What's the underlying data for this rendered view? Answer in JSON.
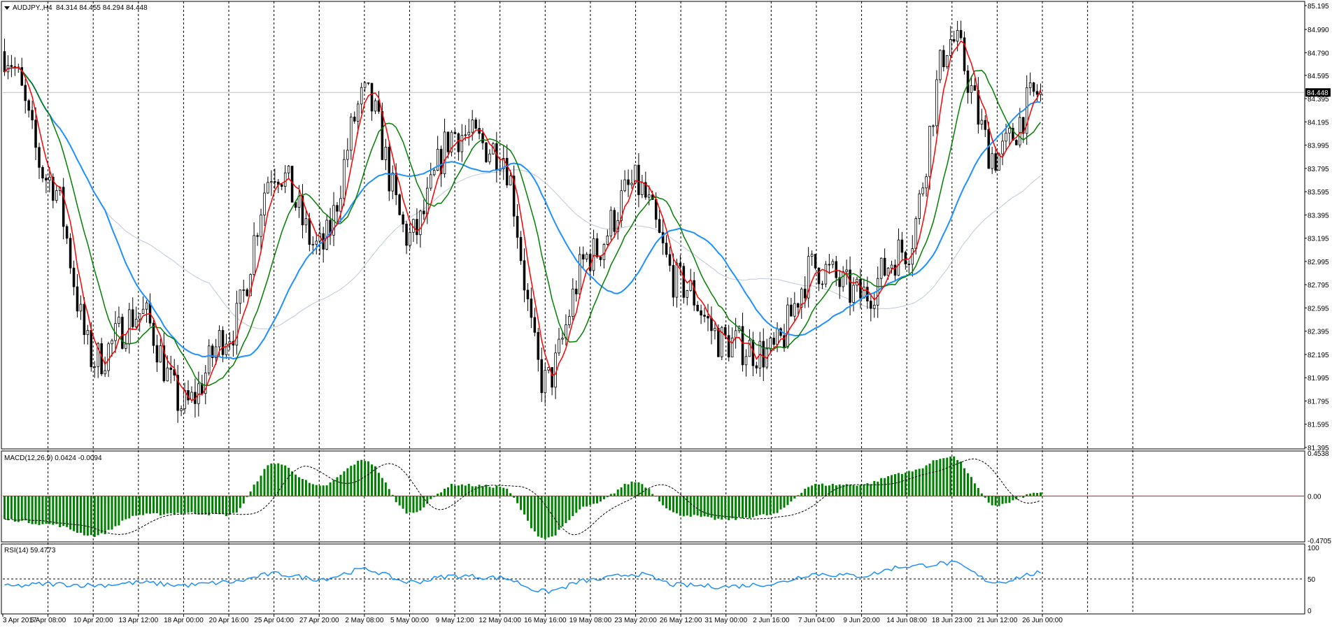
{
  "symbol_label": "AUDJPY.,H4",
  "ohlc_readout": "84.314 84.455 84.294 84.448",
  "current_price": "84.448",
  "main_axis": {
    "ticks": [
      "85.195",
      "84.990",
      "84.790",
      "84.595",
      "84.395",
      "84.195",
      "83.995",
      "83.795",
      "83.595",
      "83.395",
      "83.195",
      "82.995",
      "82.795",
      "82.595",
      "82.395",
      "82.195",
      "81.995",
      "81.795",
      "81.595",
      "81.395"
    ],
    "range": [
      81.395,
      85.195
    ]
  },
  "macd": {
    "label": "MACD(12,26,9) 0.0424 -0.0094",
    "ticks": [
      "0.4538",
      "0.00",
      "-0.4705"
    ],
    "range": [
      -0.4705,
      0.4538
    ]
  },
  "rsi": {
    "label": "RSI(14) 59.4773",
    "ticks": [
      "100",
      "50",
      "0"
    ],
    "range": [
      0,
      100
    ]
  },
  "time_axis": [
    "3 Apr 2017",
    "6 Apr 08:00",
    "10 Apr 20:00",
    "13 Apr 12:00",
    "18 Apr 00:00",
    "20 Apr 16:00",
    "25 Apr 04:00",
    "27 Apr 20:00",
    "2 May 08:00",
    "5 May 00:00",
    "9 May 12:00",
    "12 May 04:00",
    "16 May 16:00",
    "19 May 08:00",
    "23 May 20:00",
    "26 May 12:00",
    "31 May 00:00",
    "2 Jun 16:00",
    "7 Jun 04:00",
    "9 Jun 20:00",
    "14 Jun 08:00",
    "18 Jun 23:00",
    "21 Jun 12:00",
    "26 Jun 00:00"
  ],
  "colors": {
    "bull_body": "#ffffff",
    "bear_body": "#000000",
    "candle_line": "#000000",
    "ma_red": "#ff0000",
    "ma_green": "#008000",
    "ma_blue": "#1e90ff",
    "ma_gray": "#c0c8d8",
    "macd_hist": "#008000",
    "macd_signal": "#000000",
    "zero_line": "#ff0000",
    "rsi_line": "#1e90ff",
    "grid": "#000000",
    "price_line": "#c0c0c0"
  },
  "chart_data": [
    {
      "type": "candlestick",
      "title": "AUDJPY.,H4",
      "ylim": [
        81.395,
        85.195
      ],
      "x": [
        "3 Apr 2017",
        "6 Apr 08:00",
        "10 Apr 20:00",
        "13 Apr 12:00",
        "18 Apr 00:00",
        "20 Apr 16:00",
        "25 Apr 04:00",
        "27 Apr 20:00",
        "2 May 08:00",
        "5 May 00:00",
        "9 May 12:00",
        "12 May 04:00",
        "16 May 16:00",
        "19 May 08:00",
        "23 May 20:00",
        "26 May 12:00",
        "31 May 00:00",
        "2 Jun 16:00",
        "7 Jun 04:00",
        "9 Jun 20:00",
        "14 Jun 08:00",
        "18 Jun 23:00",
        "21 Jun 12:00",
        "26 Jun 00:00"
      ],
      "anchors": [
        84.8,
        83.7,
        82.15,
        82.55,
        81.75,
        82.4,
        83.8,
        83.1,
        84.4,
        83.2,
        84.1,
        83.95,
        81.95,
        83.05,
        83.65,
        82.8,
        82.3,
        82.2,
        82.95,
        82.7,
        83.1,
        84.9,
        83.9,
        84.45
      ],
      "last_close": 84.448
    },
    {
      "type": "bar",
      "title": "MACD(12,26,9) 0.0424 -0.0094",
      "ylim": [
        -0.4705,
        0.4538
      ],
      "x": [
        "3 Apr 2017",
        "6 Apr 08:00",
        "10 Apr 20:00",
        "13 Apr 12:00",
        "18 Apr 00:00",
        "20 Apr 16:00",
        "25 Apr 04:00",
        "27 Apr 20:00",
        "2 May 08:00",
        "5 May 00:00",
        "9 May 12:00",
        "12 May 04:00",
        "16 May 16:00",
        "19 May 08:00",
        "23 May 20:00",
        "26 May 12:00",
        "31 May 00:00",
        "2 Jun 16:00",
        "7 Jun 04:00",
        "9 Jun 20:00",
        "14 Jun 08:00",
        "18 Jun 23:00",
        "21 Jun 12:00",
        "26 Jun 00:00"
      ],
      "anchors": [
        -0.25,
        -0.3,
        -0.42,
        -0.2,
        -0.18,
        -0.2,
        0.35,
        0.1,
        0.38,
        -0.18,
        0.12,
        0.1,
        -0.45,
        -0.1,
        0.15,
        -0.2,
        -0.25,
        -0.2,
        0.12,
        0.12,
        0.25,
        0.42,
        -0.1,
        0.04
      ]
    },
    {
      "type": "line",
      "title": "RSI(14) 59.4773",
      "ylim": [
        0,
        100
      ],
      "x": [
        "3 Apr 2017",
        "6 Apr 08:00",
        "10 Apr 20:00",
        "13 Apr 12:00",
        "18 Apr 00:00",
        "20 Apr 16:00",
        "25 Apr 04:00",
        "27 Apr 20:00",
        "2 May 08:00",
        "5 May 00:00",
        "9 May 12:00",
        "12 May 04:00",
        "16 May 16:00",
        "19 May 08:00",
        "23 May 20:00",
        "26 May 12:00",
        "31 May 00:00",
        "2 Jun 16:00",
        "7 Jun 04:00",
        "9 Jun 20:00",
        "14 Jun 08:00",
        "18 Jun 23:00",
        "21 Jun 12:00",
        "26 Jun 00:00"
      ],
      "anchors": [
        38,
        42,
        40,
        44,
        40,
        45,
        58,
        50,
        65,
        45,
        55,
        52,
        30,
        48,
        58,
        40,
        38,
        42,
        58,
        55,
        70,
        75,
        45,
        59.48
      ]
    }
  ]
}
